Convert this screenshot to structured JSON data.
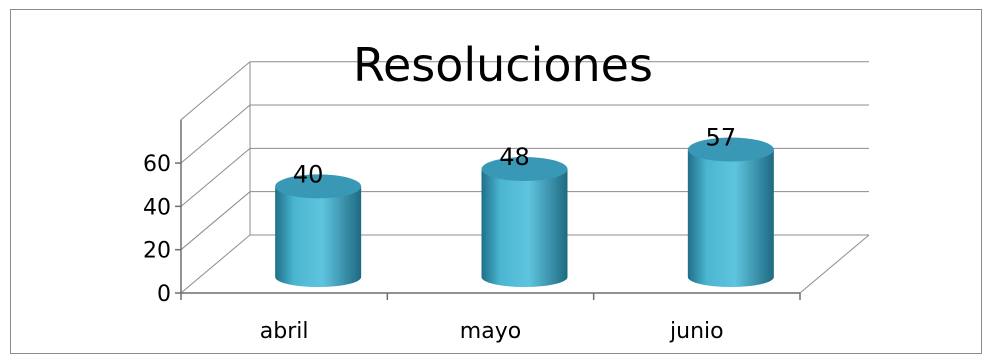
{
  "chart_data": {
    "type": "bar",
    "style": "3d-cylinder",
    "title": "Resoluciones",
    "categories": [
      "abril",
      "mayo",
      "junio"
    ],
    "values": [
      40,
      48,
      57
    ],
    "data_labels": [
      "40",
      "48",
      "57"
    ],
    "yticks": [
      0,
      20,
      40,
      60
    ],
    "ylim": [
      0,
      60
    ],
    "xlabel": "",
    "ylabel": "",
    "grid": true,
    "legend": "none",
    "colors": {
      "bar_body": "#4bb6d2",
      "bar_dark": "#1f6f89",
      "bar_top": "#3a98b7",
      "gridline": "#8c8c8c",
      "axis": "#6e6e6e"
    }
  }
}
